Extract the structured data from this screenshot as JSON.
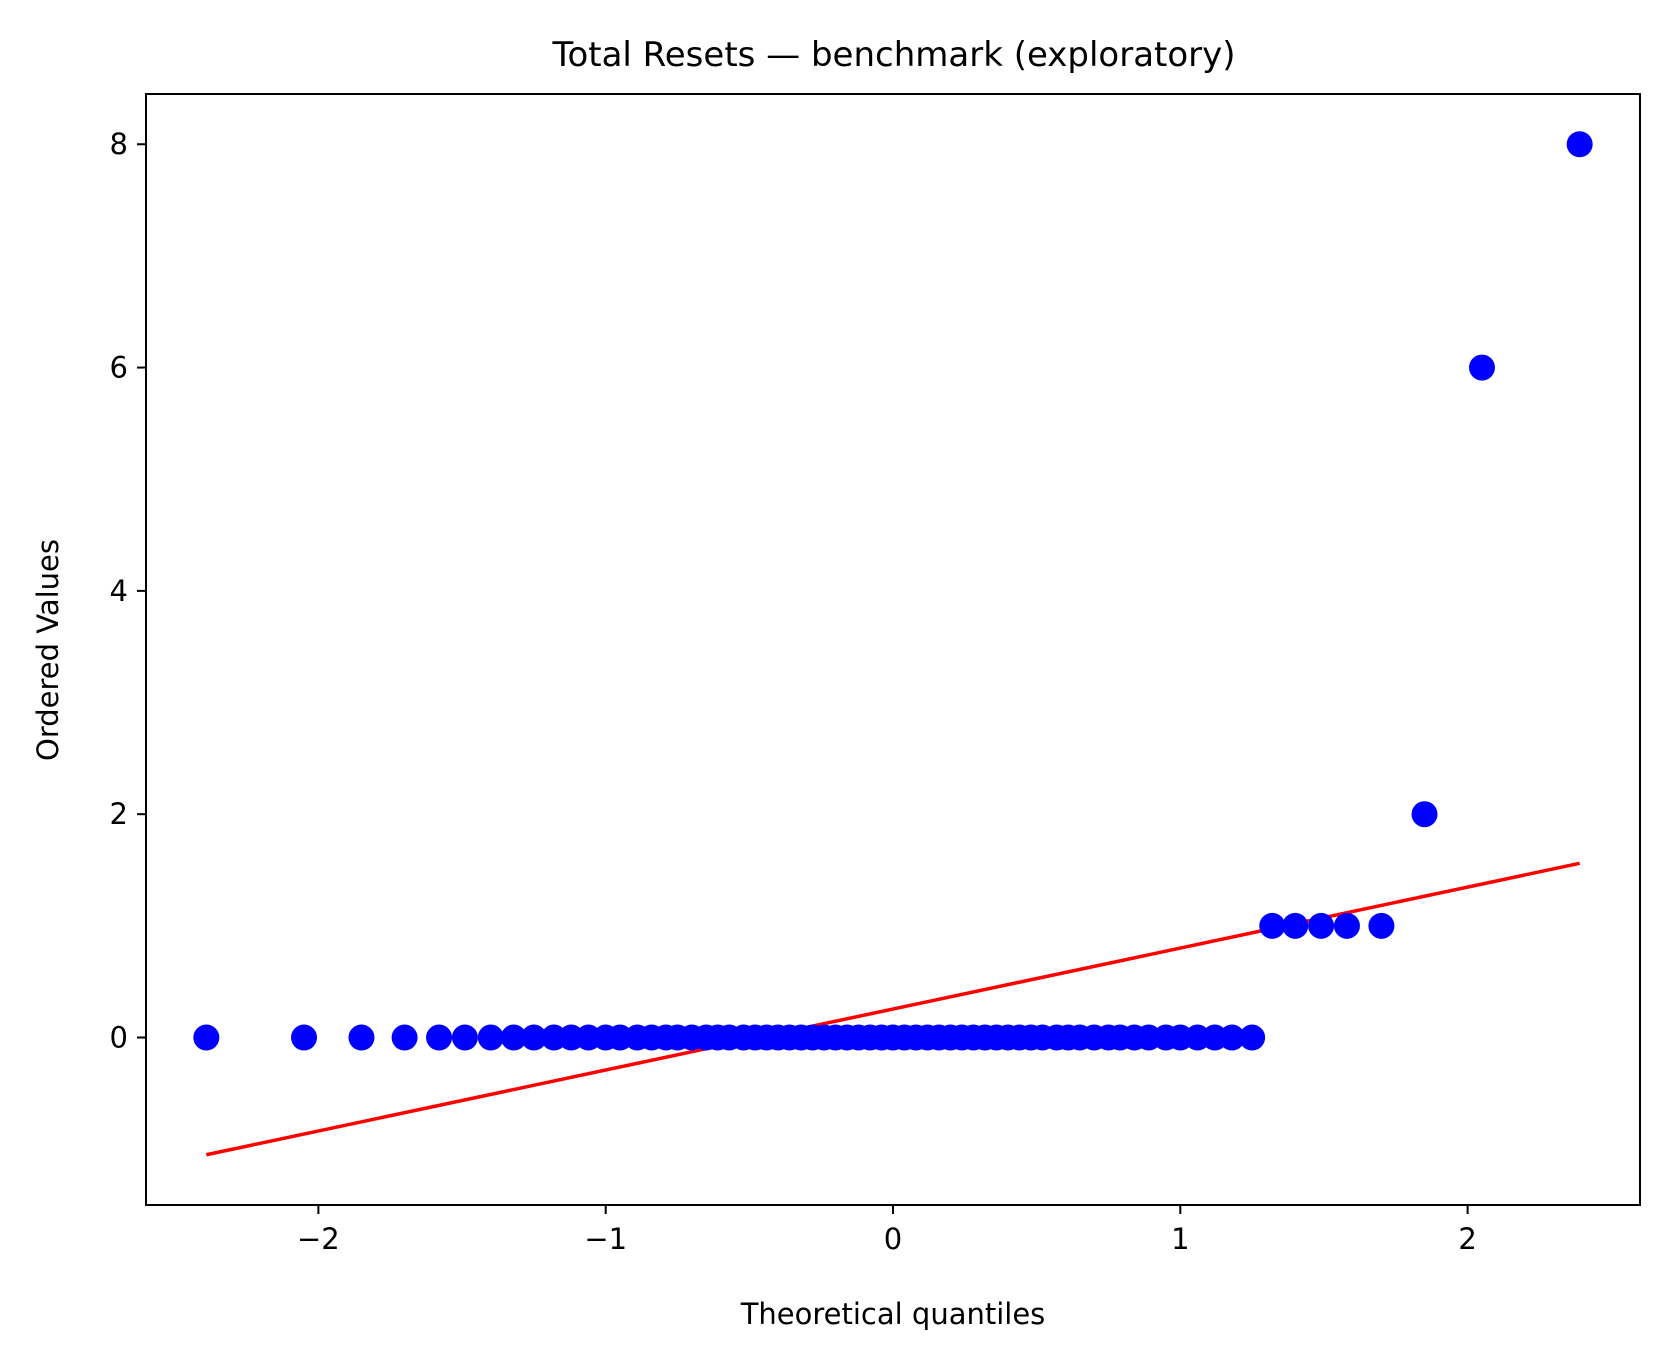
{
  "chart_data": {
    "type": "scatter",
    "title": "Total Resets — benchmark (exploratory)",
    "xlabel": "Theoretical quantiles",
    "ylabel": "Ordered Values",
    "xlim": [
      -2.6,
      2.6
    ],
    "ylim": [
      -1.5,
      8.45
    ],
    "xticks": [
      {
        "value": -2,
        "label": "−2"
      },
      {
        "value": -1,
        "label": "−1"
      },
      {
        "value": 0,
        "label": "0"
      },
      {
        "value": 1,
        "label": "1"
      },
      {
        "value": 2,
        "label": "2"
      }
    ],
    "yticks": [
      {
        "value": 0,
        "label": "0"
      },
      {
        "value": 2,
        "label": "2"
      },
      {
        "value": 4,
        "label": "4"
      },
      {
        "value": 6,
        "label": "6"
      },
      {
        "value": 8,
        "label": "8"
      }
    ],
    "grid": false,
    "series": [
      {
        "kind": "points",
        "color": "#0000ff",
        "x": [
          -2.39,
          -2.05,
          -1.85,
          -1.7,
          -1.58,
          -1.49,
          -1.4,
          -1.32,
          -1.25,
          -1.18,
          -1.12,
          -1.06,
          -1.0,
          -0.95,
          -0.89,
          -0.84,
          -0.79,
          -0.75,
          -0.7,
          -0.65,
          -0.61,
          -0.57,
          -0.52,
          -0.48,
          -0.44,
          -0.4,
          -0.36,
          -0.32,
          -0.28,
          -0.24,
          -0.2,
          -0.16,
          -0.12,
          -0.08,
          -0.04,
          0.0,
          0.04,
          0.08,
          0.12,
          0.16,
          0.2,
          0.24,
          0.28,
          0.32,
          0.36,
          0.4,
          0.44,
          0.48,
          0.52,
          0.57,
          0.61,
          0.65,
          0.7,
          0.75,
          0.79,
          0.84,
          0.89,
          0.95,
          1.0,
          1.06,
          1.12,
          1.18,
          1.25,
          1.32,
          1.4,
          1.49,
          1.58,
          1.7,
          1.85,
          2.05,
          2.39
        ],
        "y": [
          0,
          0,
          0,
          0,
          0,
          0,
          0,
          0,
          0,
          0,
          0,
          0,
          0,
          0,
          0,
          0,
          0,
          0,
          0,
          0,
          0,
          0,
          0,
          0,
          0,
          0,
          0,
          0,
          0,
          0,
          0,
          0,
          0,
          0,
          0,
          0,
          0,
          0,
          0,
          0,
          0,
          0,
          0,
          0,
          0,
          0,
          0,
          0,
          0,
          0,
          0,
          0,
          0,
          0,
          0,
          0,
          0,
          0,
          0,
          0,
          0,
          0,
          0,
          1,
          1,
          1,
          1,
          1,
          2,
          6,
          8
        ]
      },
      {
        "kind": "fit-line",
        "color": "#ff0000",
        "x": [
          -2.39,
          2.39
        ],
        "y": [
          -1.05,
          1.56
        ]
      }
    ]
  }
}
